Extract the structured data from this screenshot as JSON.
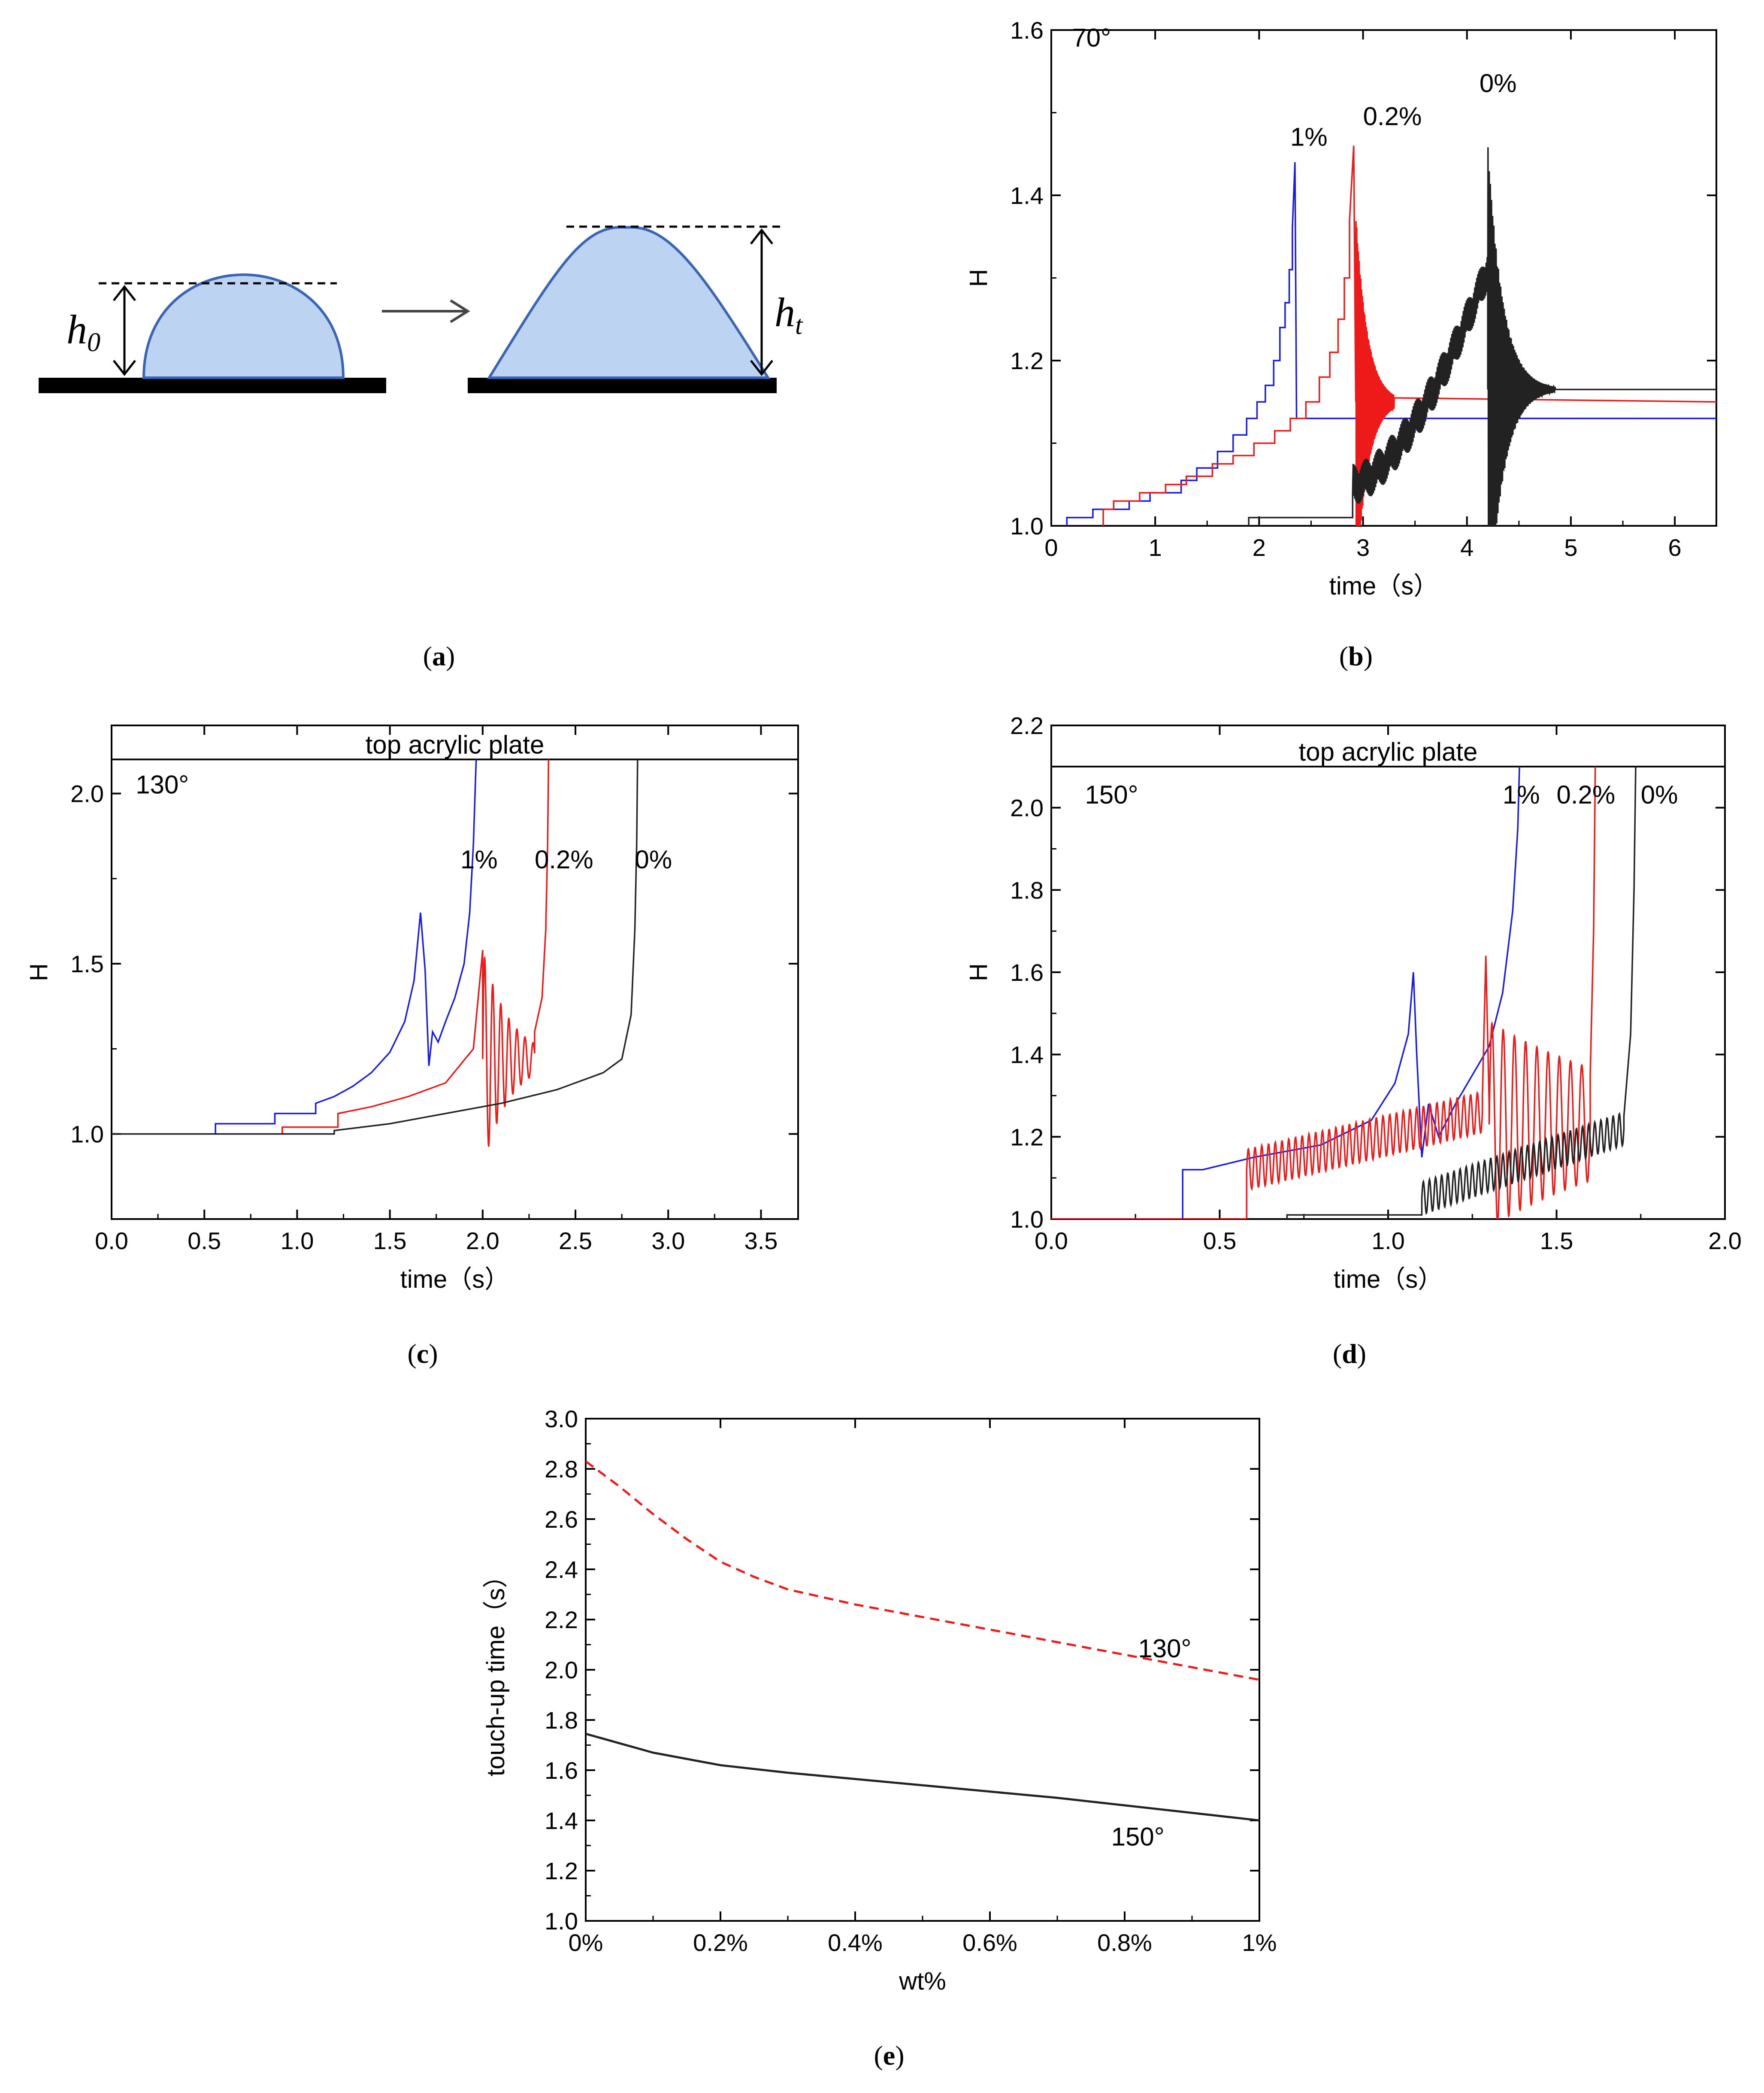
{
  "colors": {
    "blue": "#1a1ae6",
    "red": "#ee1a1a",
    "black": "#222222",
    "drop_fill": "#bcd3f2",
    "drop_stroke": "#3a64b4",
    "substrate": "#000000"
  },
  "panel_a": {
    "caption_letter": "a",
    "label_h0_main": "h",
    "label_h0_sub": "0",
    "label_ht_main": "h",
    "label_ht_sub": "t"
  },
  "chart_data": [
    {
      "id": "b",
      "type": "line",
      "caption_letter": "b",
      "xlabel": "time（s）",
      "ylabel": "H",
      "xlim": [
        0,
        6.4
      ],
      "ylim": [
        1.0,
        1.6
      ],
      "xticks": [
        0,
        1,
        2,
        3,
        4,
        5,
        6
      ],
      "xtick_labels": [
        "0",
        "1",
        "2",
        "3",
        "4",
        "5",
        "6"
      ],
      "yticks": [
        1.0,
        1.2,
        1.4,
        1.6
      ],
      "ytick_labels": [
        "1.0",
        "1.2",
        "1.4",
        "1.6"
      ],
      "grid": false,
      "annotations": [
        {
          "text": "70°",
          "x": 0.2,
          "y": 1.58
        },
        {
          "text": "1%",
          "x": 2.3,
          "y": 1.46
        },
        {
          "text": "0.2%",
          "x": 3.0,
          "y": 1.485
        },
        {
          "text": "0%",
          "x": 4.12,
          "y": 1.525
        }
      ],
      "series": [
        {
          "label": "1%",
          "color": "blue",
          "kind": "steps",
          "points": [
            [
              0.15,
              1.0
            ],
            [
              0.15,
              1.01
            ],
            [
              0.4,
              1.01
            ],
            [
              0.4,
              1.02
            ],
            [
              0.75,
              1.02
            ],
            [
              0.75,
              1.03
            ],
            [
              0.95,
              1.03
            ],
            [
              0.95,
              1.04
            ],
            [
              1.25,
              1.04
            ],
            [
              1.25,
              1.055
            ],
            [
              1.4,
              1.055
            ],
            [
              1.4,
              1.07
            ],
            [
              1.6,
              1.07
            ],
            [
              1.6,
              1.09
            ],
            [
              1.75,
              1.09
            ],
            [
              1.75,
              1.11
            ],
            [
              1.88,
              1.11
            ],
            [
              1.88,
              1.13
            ],
            [
              1.98,
              1.13
            ],
            [
              1.98,
              1.15
            ],
            [
              2.06,
              1.15
            ],
            [
              2.06,
              1.17
            ],
            [
              2.14,
              1.17
            ],
            [
              2.14,
              1.2
            ],
            [
              2.2,
              1.2
            ],
            [
              2.2,
              1.24
            ],
            [
              2.25,
              1.24
            ],
            [
              2.25,
              1.27
            ],
            [
              2.29,
              1.27
            ],
            [
              2.29,
              1.31
            ],
            [
              2.32,
              1.31
            ],
            [
              2.32,
              1.36
            ],
            [
              2.345,
              1.44
            ],
            [
              2.36,
              1.13
            ],
            [
              6.4,
              1.13
            ]
          ]
        },
        {
          "label": "0.2%",
          "color": "red",
          "kind": "steps",
          "points": [
            [
              0.5,
              1.0
            ],
            [
              0.5,
              1.02
            ],
            [
              0.6,
              1.02
            ],
            [
              0.6,
              1.03
            ],
            [
              0.85,
              1.03
            ],
            [
              0.85,
              1.04
            ],
            [
              1.1,
              1.04
            ],
            [
              1.1,
              1.05
            ],
            [
              1.3,
              1.05
            ],
            [
              1.3,
              1.06
            ],
            [
              1.55,
              1.06
            ],
            [
              1.55,
              1.075
            ],
            [
              1.75,
              1.075
            ],
            [
              1.75,
              1.085
            ],
            [
              1.95,
              1.085
            ],
            [
              1.95,
              1.1
            ],
            [
              2.15,
              1.1
            ],
            [
              2.15,
              1.115
            ],
            [
              2.3,
              1.115
            ],
            [
              2.3,
              1.13
            ],
            [
              2.45,
              1.13
            ],
            [
              2.45,
              1.15
            ],
            [
              2.58,
              1.15
            ],
            [
              2.58,
              1.18
            ],
            [
              2.68,
              1.18
            ],
            [
              2.68,
              1.21
            ],
            [
              2.76,
              1.21
            ],
            [
              2.76,
              1.25
            ],
            [
              2.82,
              1.25
            ],
            [
              2.82,
              1.3
            ],
            [
              2.87,
              1.3
            ],
            [
              2.87,
              1.37
            ],
            [
              2.91,
              1.46
            ]
          ],
          "osc": {
            "t0": 2.93,
            "t1": 3.3,
            "center": 1.15,
            "amp0": 0.23,
            "decay": 9,
            "freq": 130,
            "tail_end": 6.4,
            "tail_value": 1.15
          }
        },
        {
          "label": "0%",
          "color": "black",
          "kind": "steps",
          "points": [
            [
              1.9,
              1.0
            ],
            [
              1.9,
              1.01
            ],
            [
              2.9,
              1.01
            ]
          ],
          "noise": {
            "t0": 2.9,
            "t1": 4.2,
            "y0": 1.05,
            "y1": 1.31,
            "amp": 0.025
          },
          "osc": {
            "t0": 4.2,
            "t1": 4.85,
            "center": 1.165,
            "amp0": 0.3,
            "decay": 7,
            "freq": 90,
            "tail_end": 6.4,
            "tail_value": 1.165
          }
        }
      ]
    },
    {
      "id": "c",
      "type": "line",
      "caption_letter": "c",
      "xlabel": "time（s）",
      "ylabel": "H",
      "xlim": [
        0,
        3.7
      ],
      "ylim": [
        0.75,
        2.2
      ],
      "xticks": [
        0,
        0.5,
        1.0,
        1.5,
        2.0,
        2.5,
        3.0,
        3.5
      ],
      "xtick_labels": [
        "0.0",
        "0.5",
        "1.0",
        "1.5",
        "2.0",
        "2.5",
        "3.0",
        "3.5"
      ],
      "yticks": [
        1.0,
        1.5,
        2.0
      ],
      "ytick_labels": [
        "1.0",
        "1.5",
        "2.0"
      ],
      "grid": false,
      "top_line": {
        "y": 2.1,
        "label": "top acrylic plate"
      },
      "annotations": [
        {
          "text": "130°",
          "x": 0.13,
          "y": 2.0
        },
        {
          "text": "1%",
          "x": 1.88,
          "y": 1.78
        },
        {
          "text": "0.2%",
          "x": 2.28,
          "y": 1.78
        },
        {
          "text": "0%",
          "x": 2.82,
          "y": 1.78
        }
      ],
      "series": [
        {
          "label": "1%",
          "color": "blue",
          "kind": "line",
          "points": [
            [
              0,
              1.0
            ],
            [
              0.56,
              1.0
            ],
            [
              0.56,
              1.03
            ],
            [
              0.88,
              1.03
            ],
            [
              0.88,
              1.06
            ],
            [
              1.1,
              1.06
            ],
            [
              1.1,
              1.09
            ],
            [
              1.2,
              1.11
            ],
            [
              1.3,
              1.14
            ],
            [
              1.4,
              1.18
            ],
            [
              1.5,
              1.24
            ],
            [
              1.58,
              1.33
            ],
            [
              1.63,
              1.45
            ],
            [
              1.665,
              1.65
            ],
            [
              1.69,
              1.48
            ],
            [
              1.71,
              1.2
            ],
            [
              1.73,
              1.3
            ],
            [
              1.76,
              1.27
            ],
            [
              1.8,
              1.33
            ],
            [
              1.85,
              1.4
            ],
            [
              1.9,
              1.5
            ],
            [
              1.93,
              1.65
            ],
            [
              1.95,
              1.85
            ],
            [
              1.965,
              2.1
            ]
          ]
        },
        {
          "label": "0.2%",
          "color": "red",
          "kind": "line",
          "points": [
            [
              0,
              1.0
            ],
            [
              0.92,
              1.0
            ],
            [
              0.92,
              1.02
            ],
            [
              1.22,
              1.02
            ],
            [
              1.22,
              1.06
            ],
            [
              1.4,
              1.08
            ],
            [
              1.6,
              1.11
            ],
            [
              1.8,
              1.15
            ],
            [
              1.95,
              1.25
            ],
            [
              2.0,
              1.54
            ]
          ],
          "osc": {
            "t0": 2.0,
            "t1": 2.28,
            "center": 1.22,
            "amp0": 0.32,
            "decay": 7,
            "freq": 23
          },
          "tail": [
            [
              2.28,
              1.3
            ],
            [
              2.32,
              1.4
            ],
            [
              2.34,
              1.6
            ],
            [
              2.35,
              1.85
            ],
            [
              2.355,
              2.1
            ]
          ]
        },
        {
          "label": "0%",
          "color": "black",
          "kind": "line",
          "points": [
            [
              0,
              1.0
            ],
            [
              1.2,
              1.0
            ],
            [
              1.2,
              1.01
            ],
            [
              1.5,
              1.03
            ],
            [
              1.8,
              1.06
            ],
            [
              2.1,
              1.09
            ],
            [
              2.4,
              1.13
            ],
            [
              2.65,
              1.18
            ],
            [
              2.75,
              1.22
            ],
            [
              2.8,
              1.35
            ],
            [
              2.82,
              1.6
            ],
            [
              2.83,
              1.85
            ],
            [
              2.835,
              2.1
            ]
          ]
        }
      ]
    },
    {
      "id": "d",
      "type": "line",
      "caption_letter": "d",
      "xlabel": "time（s）",
      "ylabel": "H",
      "xlim": [
        0,
        2.0
      ],
      "ylim": [
        1.0,
        2.2
      ],
      "xticks": [
        0,
        0.5,
        1.0,
        1.5,
        2.0
      ],
      "xtick_labels": [
        "0.0",
        "0.5",
        "1.0",
        "1.5",
        "2.0"
      ],
      "yticks": [
        1.0,
        1.2,
        1.4,
        1.6,
        1.8,
        2.0,
        2.2
      ],
      "ytick_labels": [
        "1.0",
        "1.2",
        "1.4",
        "1.6",
        "1.8",
        "2.0",
        "2.2"
      ],
      "grid": false,
      "top_line": {
        "y": 2.1,
        "label": "top acrylic plate"
      },
      "annotations": [
        {
          "text": "150°",
          "x": 0.1,
          "y": 2.01
        },
        {
          "text": "1%",
          "x": 1.34,
          "y": 2.01
        },
        {
          "text": "0.2%",
          "x": 1.5,
          "y": 2.01
        },
        {
          "text": "0%",
          "x": 1.75,
          "y": 2.01
        }
      ],
      "series": [
        {
          "label": "1%",
          "color": "blue",
          "kind": "line",
          "points": [
            [
              0,
              1.0
            ],
            [
              0.39,
              1.0
            ],
            [
              0.39,
              1.12
            ],
            [
              0.45,
              1.12
            ],
            [
              0.6,
              1.15
            ],
            [
              0.8,
              1.18
            ],
            [
              0.95,
              1.24
            ],
            [
              1.02,
              1.33
            ],
            [
              1.06,
              1.45
            ],
            [
              1.075,
              1.6
            ],
            [
              1.085,
              1.4
            ],
            [
              1.1,
              1.15
            ],
            [
              1.12,
              1.28
            ],
            [
              1.15,
              1.2
            ],
            [
              1.2,
              1.28
            ],
            [
              1.25,
              1.35
            ],
            [
              1.3,
              1.42
            ],
            [
              1.34,
              1.55
            ],
            [
              1.37,
              1.75
            ],
            [
              1.385,
              1.95
            ],
            [
              1.39,
              2.1
            ]
          ]
        },
        {
          "label": "0.2%",
          "color": "red",
          "kind": "line",
          "points": [
            [
              0,
              1.0
            ],
            [
              0.58,
              1.0
            ],
            [
              0.58,
              1.12
            ]
          ],
          "osc": {
            "t0": 0.58,
            "t1": 1.28,
            "center_start": 1.12,
            "center_end": 1.26,
            "amp0": 0.05,
            "decay": 0,
            "freq": 50
          },
          "tail": [
            [
              1.28,
              1.3
            ],
            [
              1.29,
              1.64
            ],
            [
              1.3,
              1.28
            ]
          ],
          "osc2": {
            "t0": 1.3,
            "t1": 1.6,
            "center": 1.23,
            "amp0": 0.25,
            "decay": 2,
            "freq": 30
          },
          "tail2": [
            [
              1.6,
              1.35
            ],
            [
              1.61,
              1.7
            ],
            [
              1.615,
              2.1
            ]
          ]
        },
        {
          "label": "0%",
          "color": "black",
          "kind": "line",
          "points": [
            [
              0.7,
              1.0
            ],
            [
              0.7,
              1.01
            ],
            [
              1.1,
              1.01
            ]
          ],
          "osc": {
            "t0": 1.1,
            "t1": 1.7,
            "center_start": 1.05,
            "center_end": 1.22,
            "amp0": 0.04,
            "decay": 0,
            "freq": 55
          },
          "tail": [
            [
              1.7,
              1.25
            ],
            [
              1.72,
              1.45
            ],
            [
              1.73,
              1.8
            ],
            [
              1.735,
              2.1
            ]
          ]
        }
      ]
    },
    {
      "id": "e",
      "type": "line",
      "caption_letter": "e",
      "xlabel": "wt%",
      "ylabel": "touch-up time（s）",
      "xlim": [
        0,
        1
      ],
      "ylim": [
        1.0,
        3.0
      ],
      "xticks": [
        0,
        0.2,
        0.4,
        0.6,
        0.8,
        1.0
      ],
      "xtick_labels": [
        "0%",
        "0.2%",
        "0.4%",
        "0.6%",
        "0.8%",
        "1%"
      ],
      "yticks": [
        1.0,
        1.2,
        1.4,
        1.6,
        1.8,
        2.0,
        2.2,
        2.4,
        2.6,
        2.8,
        3.0
      ],
      "ytick_labels": [
        "1.0",
        "1.2",
        "1.4",
        "1.6",
        "1.8",
        "2.0",
        "2.2",
        "2.4",
        "2.6",
        "2.8",
        "3.0"
      ],
      "grid": false,
      "annotations": [
        {
          "text": "130°",
          "x": 0.82,
          "y": 2.05
        },
        {
          "text": "150°",
          "x": 0.78,
          "y": 1.3
        }
      ],
      "series": [
        {
          "label": "130°",
          "color": "red",
          "dashed": true,
          "x": [
            0,
            0.05,
            0.1,
            0.15,
            0.2,
            0.25,
            0.3,
            0.4,
            0.5,
            0.6,
            0.7,
            0.8,
            0.9,
            1.0
          ],
          "y": [
            2.83,
            2.73,
            2.62,
            2.52,
            2.43,
            2.37,
            2.32,
            2.26,
            2.21,
            2.16,
            2.11,
            2.06,
            2.01,
            1.96
          ]
        },
        {
          "label": "150°",
          "color": "black",
          "dashed": false,
          "x": [
            0,
            0.1,
            0.2,
            0.3,
            0.4,
            0.5,
            0.6,
            0.7,
            0.8,
            0.9,
            1.0
          ],
          "y": [
            1.745,
            1.67,
            1.62,
            1.59,
            1.565,
            1.54,
            1.515,
            1.49,
            1.46,
            1.43,
            1.4
          ]
        }
      ]
    }
  ]
}
